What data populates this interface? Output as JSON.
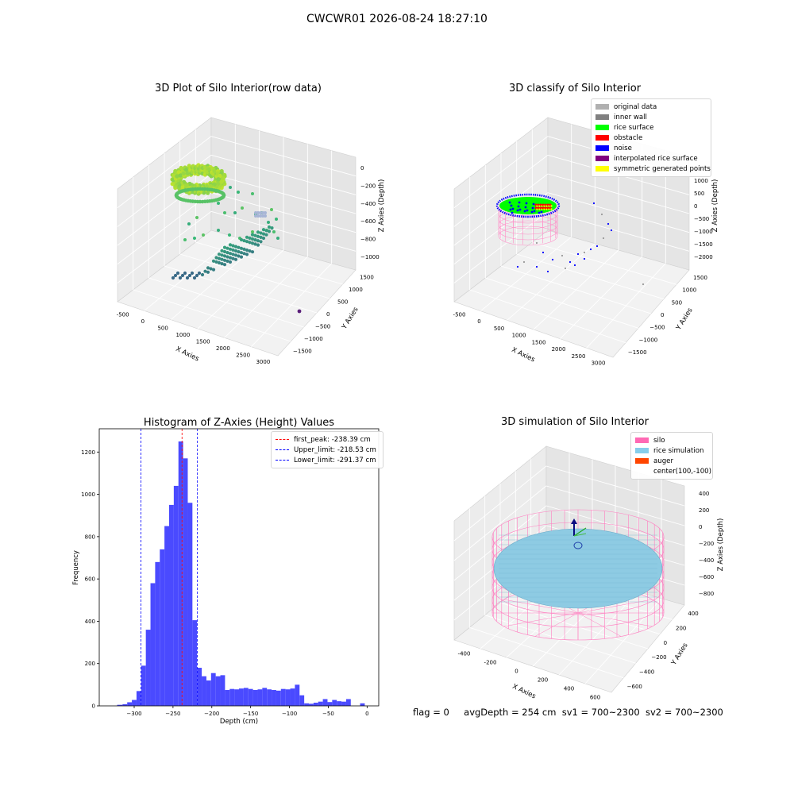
{
  "figure": {
    "suptitle": "CWCWR01 2026-08-24 18:27:10"
  },
  "panels": {
    "raw": {
      "title": "3D Plot of Silo Interior(row data)",
      "x_label": "X Axies",
      "y_label": "Y Axies",
      "z_label": "Z Axies (Depth)",
      "x_ticks": [
        "-500",
        "0",
        "500",
        "1000",
        "1500",
        "2000",
        "2500",
        "3000"
      ],
      "y_ticks": [
        "1500",
        "1000",
        "500",
        "0",
        "−500",
        "−1000",
        "−1500"
      ],
      "z_ticks": [
        "0",
        "−200",
        "−400",
        "−600",
        "−800",
        "−1000"
      ]
    },
    "classify": {
      "title": "3D classify of Silo Interior",
      "x_label": "X Axies",
      "y_label": "Y Axies",
      "z_label": "Z Axies (Depth)",
      "x_ticks": [
        "-500",
        "0",
        "500",
        "1000",
        "1500",
        "2000",
        "2500",
        "3000"
      ],
      "y_ticks": [
        "1500",
        "1000",
        "500",
        "0",
        "−500",
        "−1000",
        "−1500"
      ],
      "z_ticks": [
        "1500",
        "1000",
        "500",
        "0",
        "−500",
        "−1000",
        "−1500",
        "−2000"
      ],
      "legend": [
        {
          "label": "original data",
          "color": "#b0b0b0"
        },
        {
          "label": "inner wall",
          "color": "#808080"
        },
        {
          "label": "rice surface",
          "color": "#00ff00"
        },
        {
          "label": "obstacle",
          "color": "#ff0000"
        },
        {
          "label": "noise",
          "color": "#0000ff"
        },
        {
          "label": "interpolated rice surface",
          "color": "#800080"
        },
        {
          "label": "symmetric generated points",
          "color": "#ffff00"
        }
      ]
    },
    "simulation": {
      "title": "3D simulation of Silo Interior",
      "x_label": "X Axies",
      "y_label": "Y Axies",
      "z_label": "Z Axies (Depth)",
      "x_ticks": [
        "-400",
        "-200",
        "0",
        "200",
        "400",
        "600"
      ],
      "y_ticks": [
        "400",
        "200",
        "0",
        "−200",
        "−400",
        "−600"
      ],
      "z_ticks": [
        "400",
        "200",
        "0",
        "−200",
        "−400",
        "−600",
        "−800"
      ],
      "legend": [
        {
          "label": "silo",
          "color": "#ff69b4"
        },
        {
          "label": "rice simulation",
          "color": "#87ceeb"
        },
        {
          "label": "auger",
          "color": "#ff4500"
        },
        {
          "label": "center(100,-100)",
          "color": ""
        }
      ]
    }
  },
  "status": {
    "flag": "flag = 0",
    "avg_depth": "avgDepth = 254 cm",
    "sv1": "sv1 = 700~2300",
    "sv2": "sv2 = 700~2300"
  },
  "chart_data": {
    "type": "bar",
    "title": "Histogram of Z-Axies (Height) Values",
    "xlabel": "Depth (cm)",
    "ylabel": "Frequency",
    "xlim": [
      -345,
      15
    ],
    "ylim": [
      0,
      1310
    ],
    "x_ticks": [
      -300,
      -250,
      -200,
      -150,
      -100,
      -50,
      0
    ],
    "y_ticks": [
      0,
      200,
      400,
      600,
      800,
      1000,
      1200
    ],
    "bar_color": "#4a4aff",
    "bins": [
      {
        "x0": -322,
        "x1": -315,
        "count": 5
      },
      {
        "x0": -315,
        "x1": -309,
        "count": 8
      },
      {
        "x0": -309,
        "x1": -303,
        "count": 17
      },
      {
        "x0": -303,
        "x1": -297,
        "count": 28
      },
      {
        "x0": -297,
        "x1": -291,
        "count": 70
      },
      {
        "x0": -291,
        "x1": -285,
        "count": 190
      },
      {
        "x0": -285,
        "x1": -279,
        "count": 360
      },
      {
        "x0": -279,
        "x1": -273,
        "count": 580
      },
      {
        "x0": -273,
        "x1": -267,
        "count": 680
      },
      {
        "x0": -267,
        "x1": -261,
        "count": 740
      },
      {
        "x0": -261,
        "x1": -255,
        "count": 850
      },
      {
        "x0": -255,
        "x1": -249,
        "count": 950
      },
      {
        "x0": -249,
        "x1": -243,
        "count": 1040
      },
      {
        "x0": -243,
        "x1": -237,
        "count": 1250
      },
      {
        "x0": -237,
        "x1": -231,
        "count": 1170
      },
      {
        "x0": -231,
        "x1": -225,
        "count": 960
      },
      {
        "x0": -225,
        "x1": -219,
        "count": 405
      },
      {
        "x0": -219,
        "x1": -213,
        "count": 180
      },
      {
        "x0": -213,
        "x1": -207,
        "count": 140
      },
      {
        "x0": -207,
        "x1": -201,
        "count": 120
      },
      {
        "x0": -201,
        "x1": -195,
        "count": 155
      },
      {
        "x0": -195,
        "x1": -189,
        "count": 140
      },
      {
        "x0": -189,
        "x1": -183,
        "count": 145
      },
      {
        "x0": -183,
        "x1": -177,
        "count": 75
      },
      {
        "x0": -177,
        "x1": -171,
        "count": 80
      },
      {
        "x0": -171,
        "x1": -165,
        "count": 78
      },
      {
        "x0": -165,
        "x1": -159,
        "count": 82
      },
      {
        "x0": -159,
        "x1": -153,
        "count": 85
      },
      {
        "x0": -153,
        "x1": -147,
        "count": 80
      },
      {
        "x0": -147,
        "x1": -141,
        "count": 75
      },
      {
        "x0": -141,
        "x1": -135,
        "count": 78
      },
      {
        "x0": -135,
        "x1": -129,
        "count": 85
      },
      {
        "x0": -129,
        "x1": -123,
        "count": 78
      },
      {
        "x0": -123,
        "x1": -117,
        "count": 75
      },
      {
        "x0": -117,
        "x1": -111,
        "count": 72
      },
      {
        "x0": -111,
        "x1": -105,
        "count": 80
      },
      {
        "x0": -105,
        "x1": -99,
        "count": 78
      },
      {
        "x0": -99,
        "x1": -93,
        "count": 82
      },
      {
        "x0": -93,
        "x1": -87,
        "count": 100
      },
      {
        "x0": -87,
        "x1": -81,
        "count": 50
      },
      {
        "x0": -81,
        "x1": -75,
        "count": 12
      },
      {
        "x0": -75,
        "x1": -69,
        "count": 10
      },
      {
        "x0": -69,
        "x1": -63,
        "count": 15
      },
      {
        "x0": -63,
        "x1": -57,
        "count": 20
      },
      {
        "x0": -57,
        "x1": -51,
        "count": 32
      },
      {
        "x0": -51,
        "x1": -45,
        "count": 18
      },
      {
        "x0": -45,
        "x1": -39,
        "count": 28
      },
      {
        "x0": -39,
        "x1": -33,
        "count": 22
      },
      {
        "x0": -33,
        "x1": -27,
        "count": 20
      },
      {
        "x0": -27,
        "x1": -21,
        "count": 32
      },
      {
        "x0": -9,
        "x1": -3,
        "count": 12
      }
    ],
    "lines": [
      {
        "name": "first_peak: -238.39 cm",
        "x": -238.39,
        "color": "#ff0000"
      },
      {
        "name": "Upper_limit: -218.53 cm",
        "x": -218.53,
        "color": "#0000ff"
      },
      {
        "name": "Lower_limit: -291.37 cm",
        "x": -291.37,
        "color": "#0000ff"
      }
    ],
    "legend": "upper-right"
  }
}
